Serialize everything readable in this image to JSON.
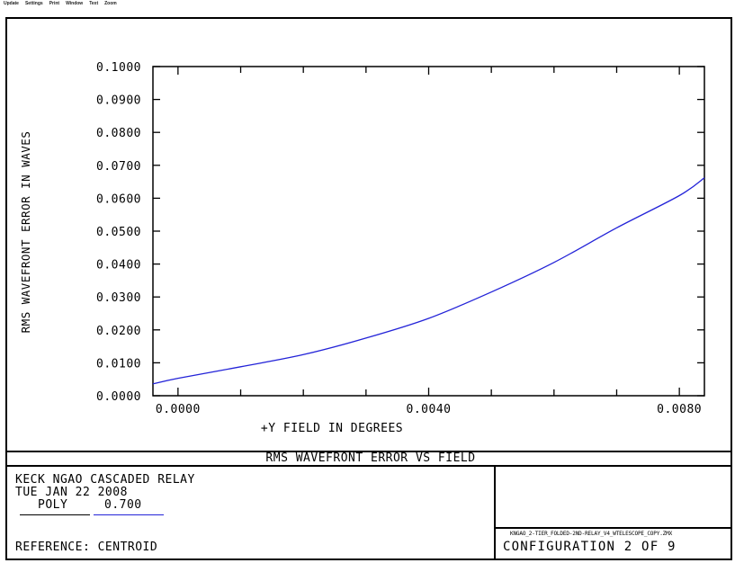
{
  "menu": {
    "items": [
      "Update",
      "Settings",
      "Print",
      "Window",
      "Text",
      "Zoom"
    ]
  },
  "chart_data": {
    "type": "line",
    "title": "RMS WAVEFRONT ERROR VS FIELD",
    "xlabel": "+Y FIELD IN DEGREES",
    "ylabel": "RMS WAVEFRONT ERROR IN WAVES",
    "xlim": [
      -0.0004,
      0.0084
    ],
    "ylim": [
      0.0,
      0.1
    ],
    "x_tick_labels": [
      "0.0000",
      "0.0040",
      "0.0080"
    ],
    "x_ticks": [
      0.0,
      0.004,
      0.008
    ],
    "y_tick_labels": [
      "0.0000",
      "0.0100",
      "0.0200",
      "0.0300",
      "0.0400",
      "0.0500",
      "0.0600",
      "0.0700",
      "0.0800",
      "0.0900",
      "0.1000"
    ],
    "y_ticks": [
      0.0,
      0.01,
      0.02,
      0.03,
      0.04,
      0.05,
      0.06,
      0.07,
      0.08,
      0.09,
      0.1
    ],
    "series": [
      {
        "color": "#2323d8",
        "x": [
          -0.0004,
          0.0,
          0.001,
          0.002,
          0.003,
          0.004,
          0.005,
          0.006,
          0.007,
          0.008,
          0.0084
        ],
        "y": [
          0.0036,
          0.0053,
          0.0088,
          0.0125,
          0.0175,
          0.0235,
          0.0315,
          0.0405,
          0.051,
          0.0608,
          0.0662
        ]
      }
    ]
  },
  "info": {
    "title_line": "KECK NGAO CASCADED RELAY",
    "date_line": "TUE JAN 22 2008",
    "legend_label": "POLY",
    "legend_value": "0.700",
    "reference": "REFERENCE: CENTROID",
    "file_name": "KNGAO_2-TIER_FOLDED-2ND-RELAY_V4_WTELESCOPE_COPY.ZMX",
    "configuration": "CONFIGURATION 2 OF 9"
  }
}
